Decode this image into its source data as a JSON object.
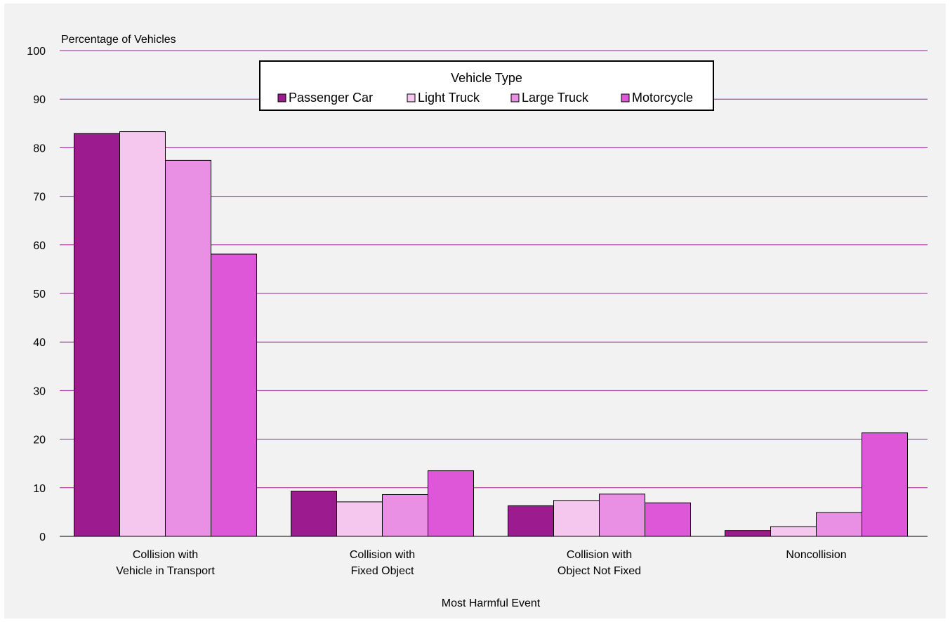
{
  "chart_data": {
    "type": "bar",
    "ylabel": "Percentage of Vehicles",
    "xlabel": "Most Harmful Event",
    "ylim": [
      0,
      100
    ],
    "yticks": [
      0,
      10,
      20,
      30,
      40,
      50,
      60,
      70,
      80,
      90,
      100
    ],
    "grid": true,
    "legend": {
      "title": "Vehicle Type",
      "placement": "top-center"
    },
    "categories": [
      [
        "Collision with",
        "Vehicle in Transport"
      ],
      [
        "Collision with",
        "Fixed Object"
      ],
      [
        "Collision with",
        "Object Not Fixed"
      ],
      [
        "Noncollision"
      ]
    ],
    "series": [
      {
        "name": "Passenger Car",
        "color": "#9c1c8f",
        "values": [
          82.9,
          9.3,
          6.3,
          1.2
        ]
      },
      {
        "name": "Light Truck",
        "color": "#f5c6ee",
        "values": [
          83.3,
          7.1,
          7.4,
          2.0
        ]
      },
      {
        "name": "Large Truck",
        "color": "#ea90e4",
        "values": [
          77.4,
          8.6,
          8.7,
          4.9
        ]
      },
      {
        "name": "Motorcycle",
        "color": "#de57d9",
        "values": [
          58.1,
          13.5,
          6.9,
          21.3
        ]
      }
    ],
    "gridline_color": "#9c1c8f"
  }
}
